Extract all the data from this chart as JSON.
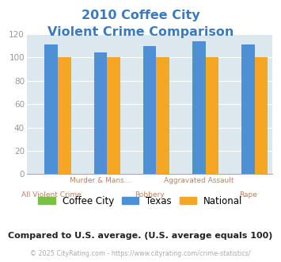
{
  "title_line1": "2010 Coffee City",
  "title_line2": "Violent Crime Comparison",
  "title_color": "#3a7abf",
  "group_labels_top": [
    "",
    "Murder & Mans...",
    "",
    "Aggravated Assault",
    ""
  ],
  "group_labels_bot": [
    "All Violent Crime",
    "",
    "Robbery",
    "",
    "Rape"
  ],
  "coffee_city": [
    0,
    0,
    0,
    0,
    0
  ],
  "texas": [
    111,
    104,
    110,
    114,
    111
  ],
  "national": [
    100,
    100,
    100,
    100,
    100
  ],
  "coffee_city_color": "#7bc043",
  "texas_color": "#4d90d5",
  "national_color": "#f5a623",
  "label_color_top": "#c08060",
  "label_color_bot": "#c08060",
  "ylim": [
    0,
    120
  ],
  "yticks": [
    0,
    20,
    40,
    60,
    80,
    100,
    120
  ],
  "plot_bg_color": "#dce8ee",
  "footer_text": "© 2025 CityRating.com - https://www.cityrating.com/crime-statistics/",
  "note_text": "Compared to U.S. average. (U.S. average equals 100)"
}
